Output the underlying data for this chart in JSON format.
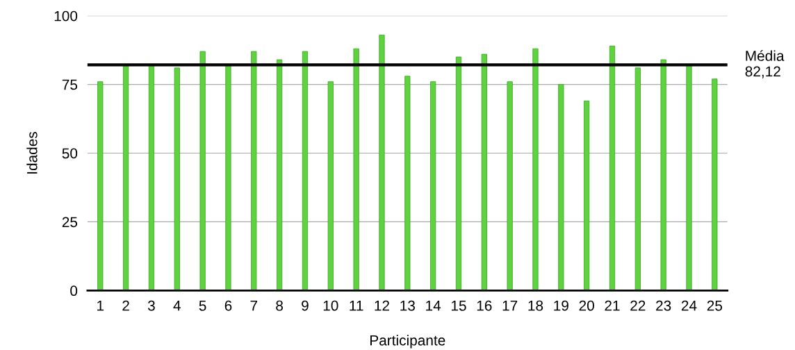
{
  "chart_data": {
    "type": "bar",
    "xlabel": "Participante",
    "ylabel": "Idades",
    "categories": [
      "1",
      "2",
      "3",
      "4",
      "5",
      "6",
      "7",
      "8",
      "9",
      "10",
      "11",
      "12",
      "13",
      "14",
      "15",
      "16",
      "17",
      "18",
      "19",
      "20",
      "21",
      "22",
      "23",
      "24",
      "25"
    ],
    "values": [
      76,
      82,
      82,
      81,
      87,
      82,
      87,
      84,
      87,
      76,
      88,
      93,
      78,
      76,
      85,
      86,
      76,
      88,
      75,
      69,
      89,
      81,
      84,
      82,
      77
    ],
    "color": "#5fd23f",
    "ylim": [
      0,
      100
    ],
    "yticks": [
      0,
      25,
      50,
      75,
      100
    ],
    "grid": "y",
    "legend": false,
    "ref_lines": [
      {
        "axis": "y",
        "value": 82.12,
        "label": "Média\n82,12",
        "color": "#000000",
        "line_style": "solid"
      }
    ]
  }
}
